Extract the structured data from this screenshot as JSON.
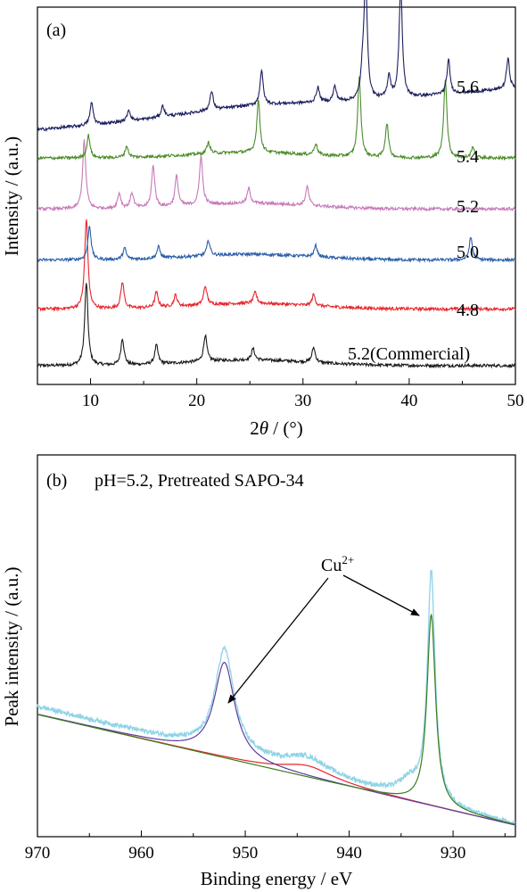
{
  "chart_data": [
    {
      "type": "line",
      "panel_label": "(a)",
      "title": "",
      "xlabel": "2θ / (°)",
      "xlabel_prefix": "2",
      "xlabel_italic": "θ",
      "xlabel_suffix": " / (°)",
      "ylabel": "Intensity / (a.u.)",
      "xlim": [
        5,
        50
      ],
      "xticks": [
        10,
        20,
        30,
        40,
        50
      ],
      "yticks": [],
      "grid": false,
      "legend": "none",
      "series": [
        {
          "name": "5.2(Commercial)",
          "color": "#1a1a1a",
          "baseline": 0.05,
          "peaks": [
            [
              9.6,
              0.22
            ],
            [
              13.0,
              0.07
            ],
            [
              16.2,
              0.05
            ],
            [
              20.8,
              0.07
            ],
            [
              25.3,
              0.03
            ],
            [
              31.0,
              0.04
            ]
          ]
        },
        {
          "name": "4.8",
          "color": "#e8242c",
          "baseline": 0.2,
          "peaks": [
            [
              9.6,
              0.24
            ],
            [
              13.0,
              0.07
            ],
            [
              16.2,
              0.04
            ],
            [
              18.0,
              0.03
            ],
            [
              20.8,
              0.05
            ],
            [
              25.5,
              0.03
            ],
            [
              31.0,
              0.03
            ]
          ]
        },
        {
          "name": "5.0",
          "color": "#2a5ea8",
          "baseline": 0.33,
          "peaks": [
            [
              9.9,
              0.09
            ],
            [
              13.2,
              0.03
            ],
            [
              16.4,
              0.03
            ],
            [
              21.1,
              0.04
            ],
            [
              31.2,
              0.03
            ],
            [
              45.8,
              0.06
            ]
          ]
        },
        {
          "name": "5.2",
          "color": "#c679b9",
          "baseline": 0.465,
          "peaks": [
            [
              9.4,
              0.18
            ],
            [
              12.7,
              0.04
            ],
            [
              13.9,
              0.04
            ],
            [
              15.9,
              0.11
            ],
            [
              18.1,
              0.08
            ],
            [
              20.4,
              0.13
            ],
            [
              24.9,
              0.04
            ],
            [
              30.4,
              0.05
            ]
          ]
        },
        {
          "name": "5.4",
          "color": "#4c8c2b",
          "baseline": 0.6,
          "peaks": [
            [
              9.8,
              0.06
            ],
            [
              13.4,
              0.03
            ],
            [
              21.1,
              0.03
            ],
            [
              25.8,
              0.14
            ],
            [
              31.2,
              0.03
            ],
            [
              35.3,
              0.21
            ],
            [
              37.9,
              0.09
            ],
            [
              43.4,
              0.21
            ],
            [
              46.0,
              0.03
            ]
          ]
        },
        {
          "name": "5.6",
          "color": "#1c1f5e",
          "baseline": 0.73,
          "slope": 0.11,
          "peaks": [
            [
              10.1,
              0.06
            ],
            [
              13.6,
              0.03
            ],
            [
              16.8,
              0.03
            ],
            [
              21.4,
              0.05
            ],
            [
              26.1,
              0.09
            ],
            [
              31.4,
              0.04
            ],
            [
              33.0,
              0.04
            ],
            [
              35.9,
              0.33
            ],
            [
              35.6,
              0.06
            ],
            [
              38.1,
              0.06
            ],
            [
              39.2,
              0.3
            ],
            [
              43.7,
              0.09
            ],
            [
              49.3,
              0.08
            ]
          ]
        }
      ]
    },
    {
      "type": "line",
      "panel_label": "(b)",
      "title": "pH=5.2, Pretreated SAPO-34",
      "xlabel": "Binding energy / eV",
      "ylabel": "Peak intensity / (a.u.)",
      "xlim": [
        970,
        924
      ],
      "xticks": [
        970,
        960,
        950,
        940,
        930
      ],
      "yticks": [],
      "grid": false,
      "legend": "none",
      "annotation": {
        "text": "Cu",
        "superscript": "2+"
      },
      "series": [
        {
          "name": "",
          "color": "#8fd3e6",
          "role": "measured",
          "baseline_start": 0.34,
          "baseline_end": 0.03,
          "peaks": [
            [
              952.0,
              0.27,
              1.1
            ],
            [
              932.1,
              0.6,
              0.45
            ],
            [
              944.0,
              0.04,
              2.6
            ],
            [
              934.2,
              0.04,
              1.2
            ]
          ]
        },
        {
          "name": "",
          "color": "#e8242c",
          "role": "background",
          "baseline_start": 0.32,
          "baseline_end": 0.03,
          "peaks": [
            [
              944.0,
              0.03,
              3.0
            ]
          ]
        },
        {
          "name": "",
          "color": "#5b3f9e",
          "role": "fit-2p1/2",
          "baseline_start": 0.32,
          "baseline_end": 0.03,
          "peaks": [
            [
              952.0,
              0.25,
              1.2
            ]
          ]
        },
        {
          "name": "",
          "color": "#3a7d1e",
          "role": "fit-2p3/2",
          "baseline_start": 0.32,
          "baseline_end": 0.03,
          "peaks": [
            [
              932.1,
              0.5,
              0.5
            ]
          ]
        }
      ]
    }
  ]
}
